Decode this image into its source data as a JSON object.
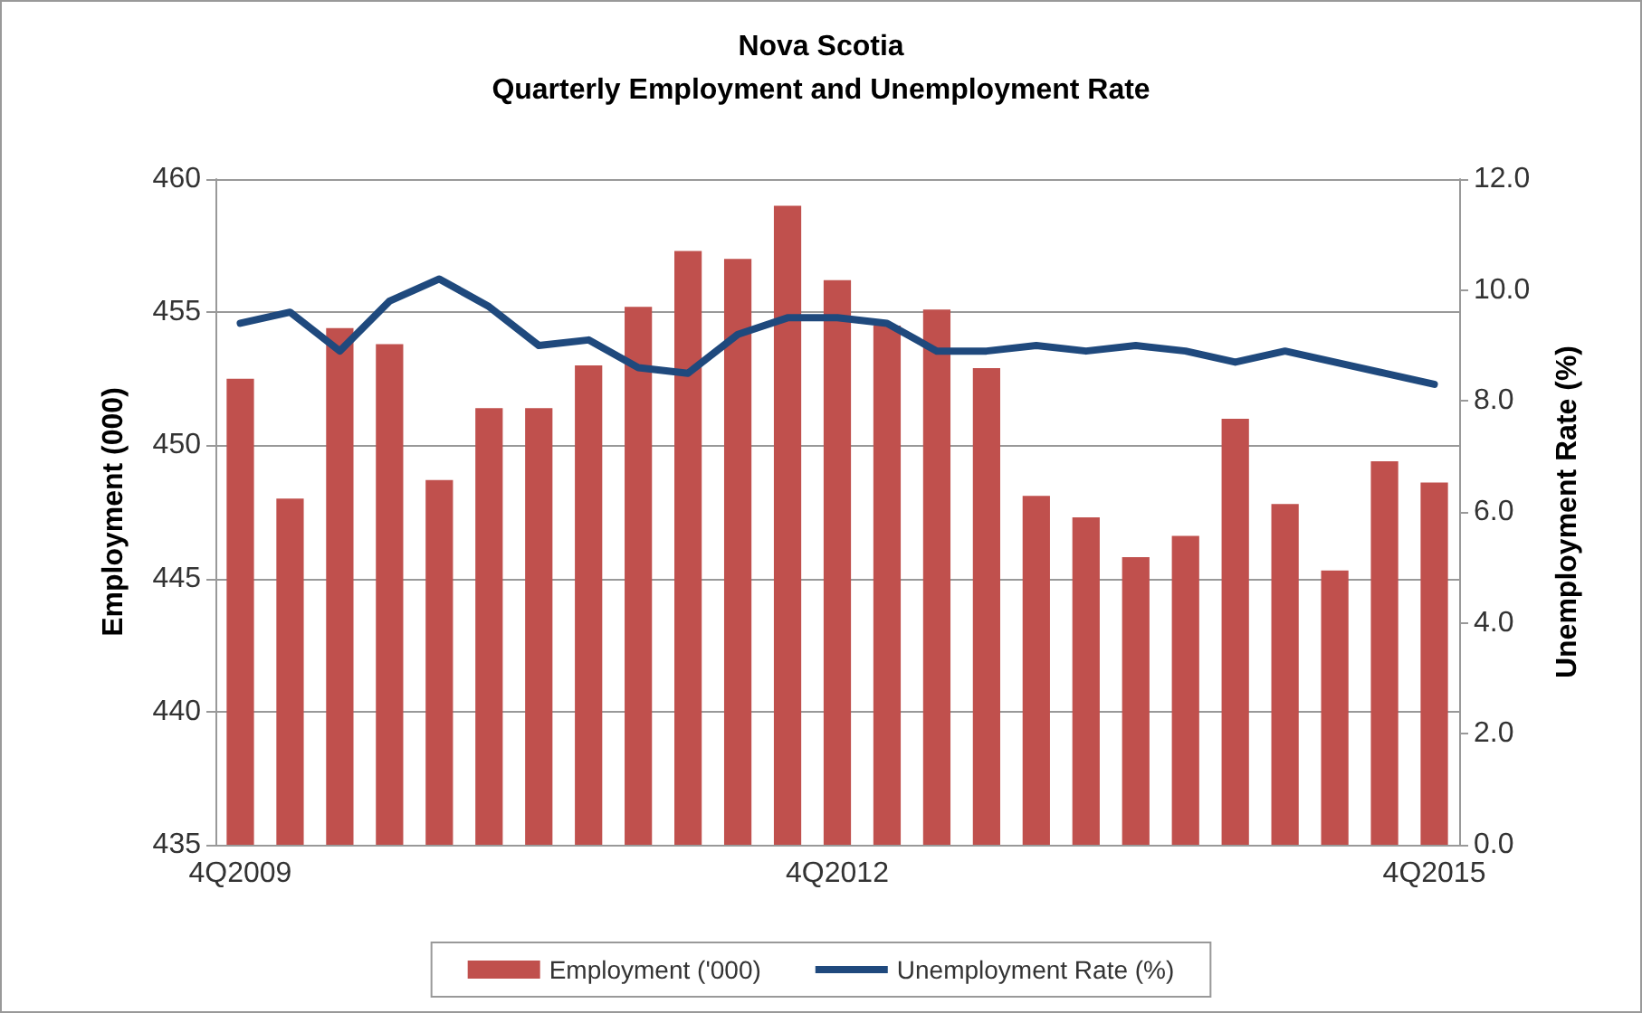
{
  "chart_data": {
    "type": "bar",
    "title": "Nova Scotia\nQuarterly Employment and Unemployment Rate",
    "ylabel": "Employment (000)",
    "y2label": "Unemployment Rate (%)",
    "categories": [
      "4Q2009",
      null,
      null,
      null,
      null,
      null,
      null,
      null,
      null,
      null,
      null,
      null,
      "4Q2012",
      null,
      null,
      null,
      null,
      null,
      null,
      null,
      null,
      null,
      null,
      null,
      "4Q2015"
    ],
    "series": [
      {
        "name": "Employment ('000)",
        "color": "#c0504d",
        "values": [
          452.5,
          448.0,
          454.4,
          453.8,
          448.7,
          451.4,
          451.4,
          453.0,
          455.2,
          457.3,
          457.0,
          459.0,
          456.2,
          454.5,
          455.1,
          452.9,
          448.1,
          447.3,
          445.8,
          446.6,
          451.0,
          447.8,
          445.3,
          449.4,
          448.6
        ]
      },
      {
        "name": "Unemployment Rate (%)",
        "type": "line",
        "axis": "y2",
        "color": "#1f497d",
        "values": [
          9.4,
          9.6,
          8.9,
          9.8,
          10.2,
          9.7,
          9.0,
          9.1,
          8.6,
          8.5,
          9.2,
          9.5,
          9.5,
          9.4,
          8.9,
          8.9,
          9.0,
          8.9,
          9.0,
          8.9,
          8.7,
          8.9,
          8.7,
          8.5,
          8.3
        ]
      }
    ],
    "ylim": [
      435,
      460
    ],
    "yticks": [
      435,
      440,
      445,
      450,
      455,
      460
    ],
    "y2lim": [
      0,
      12
    ],
    "y2ticks": [
      {
        "value": 0,
        "label": "0.0"
      },
      {
        "value": 2,
        "label": "2.0"
      },
      {
        "value": 4,
        "label": "4.0"
      },
      {
        "value": 6,
        "label": "6.0"
      },
      {
        "value": 8,
        "label": "8.0"
      },
      {
        "value": 10,
        "label": "10.0"
      },
      {
        "value": 12,
        "label": "12.0"
      }
    ],
    "grid": "y",
    "legend": "bottom",
    "marker": "none",
    "line_style": "solid"
  }
}
